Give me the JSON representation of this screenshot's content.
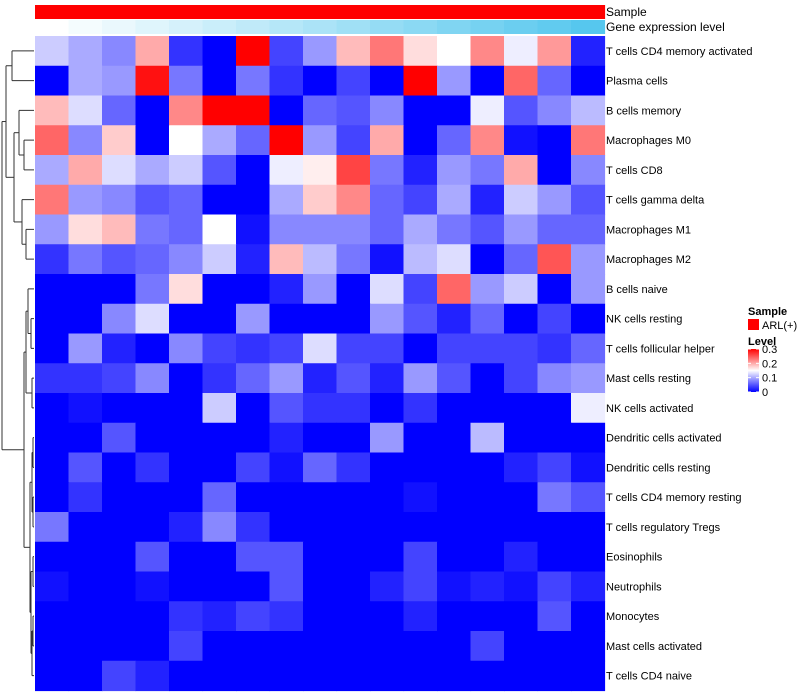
{
  "chart_data": {
    "type": "heatmap",
    "columns": 17,
    "rows": [
      "T cells CD4 memory activated",
      "Plasma cells",
      "B cells memory",
      "Macrophages M0",
      "T cells CD8",
      "T cells gamma delta",
      "Macrophages M1",
      "Macrophages M2",
      "B cells naive",
      "NK cells resting",
      "T cells follicular helper",
      "Mast cells resting",
      "NK cells activated",
      "Dendritic cells activated",
      "Dendritic cells resting",
      "T cells CD4 memory resting",
      "T cells regulatory  Tregs",
      "Eosinophils",
      "Neutrophils",
      "Monocytes",
      "Mast cells activated",
      "T cells CD4 naive"
    ],
    "values": [
      [
        0.12,
        0.1,
        0.08,
        0.2,
        0.03,
        0.0,
        0.3,
        0.04,
        0.09,
        0.19,
        0.23,
        0.17,
        0.15,
        0.22,
        0.14,
        0.21,
        0.02
      ],
      [
        0.0,
        0.1,
        0.09,
        0.29,
        0.07,
        0.0,
        0.07,
        0.03,
        0.0,
        0.04,
        0.0,
        0.3,
        0.09,
        0.0,
        0.24,
        0.06,
        0.0
      ],
      [
        0.19,
        0.13,
        0.06,
        0.0,
        0.22,
        0.3,
        0.3,
        0.0,
        0.06,
        0.05,
        0.08,
        0.0,
        0.0,
        0.14,
        0.05,
        0.08,
        0.11
      ],
      [
        0.24,
        0.08,
        0.18,
        0.0,
        0.15,
        0.1,
        0.06,
        0.3,
        0.09,
        0.04,
        0.2,
        0.0,
        0.06,
        0.22,
        0.01,
        0.0,
        0.23
      ],
      [
        0.1,
        0.2,
        0.13,
        0.1,
        0.12,
        0.05,
        0.0,
        0.14,
        0.16,
        0.26,
        0.07,
        0.02,
        0.09,
        0.07,
        0.2,
        0.0,
        0.08
      ],
      [
        0.23,
        0.09,
        0.08,
        0.05,
        0.06,
        0.0,
        0.0,
        0.1,
        0.18,
        0.22,
        0.06,
        0.04,
        0.1,
        0.02,
        0.12,
        0.09,
        0.05
      ],
      [
        0.09,
        0.17,
        0.19,
        0.07,
        0.06,
        0.15,
        0.01,
        0.08,
        0.08,
        0.08,
        0.06,
        0.1,
        0.07,
        0.05,
        0.09,
        0.06,
        0.06
      ],
      [
        0.03,
        0.07,
        0.05,
        0.06,
        0.08,
        0.12,
        0.02,
        0.19,
        0.11,
        0.07,
        0.01,
        0.11,
        0.13,
        0.0,
        0.06,
        0.25,
        0.09
      ],
      [
        0.0,
        0.0,
        0.0,
        0.07,
        0.17,
        0.0,
        0.0,
        0.02,
        0.09,
        0.0,
        0.13,
        0.04,
        0.24,
        0.09,
        0.12,
        0.0,
        0.09
      ],
      [
        0.0,
        0.0,
        0.08,
        0.13,
        0.0,
        0.0,
        0.09,
        0.0,
        0.0,
        0.0,
        0.09,
        0.05,
        0.02,
        0.06,
        0.0,
        0.04,
        0.0
      ],
      [
        0.0,
        0.09,
        0.02,
        0.0,
        0.08,
        0.04,
        0.03,
        0.04,
        0.13,
        0.04,
        0.04,
        0.0,
        0.04,
        0.04,
        0.04,
        0.03,
        0.06
      ],
      [
        0.03,
        0.03,
        0.04,
        0.08,
        0.0,
        0.03,
        0.06,
        0.09,
        0.02,
        0.05,
        0.02,
        0.09,
        0.05,
        0.0,
        0.04,
        0.08,
        0.09
      ],
      [
        0.0,
        0.01,
        0.0,
        0.0,
        0.0,
        0.12,
        0.0,
        0.05,
        0.03,
        0.03,
        0.0,
        0.03,
        0.0,
        0.0,
        0.0,
        0.0,
        0.14
      ],
      [
        0.0,
        0.0,
        0.05,
        0.0,
        0.0,
        0.0,
        0.0,
        0.02,
        0.0,
        0.0,
        0.09,
        0.0,
        0.0,
        0.11,
        0.0,
        0.0,
        0.0
      ],
      [
        0.0,
        0.05,
        0.0,
        0.03,
        0.0,
        0.0,
        0.04,
        0.01,
        0.06,
        0.03,
        0.0,
        0.0,
        0.0,
        0.0,
        0.02,
        0.04,
        0.01
      ],
      [
        0.0,
        0.03,
        0.0,
        0.0,
        0.0,
        0.06,
        0.0,
        0.0,
        0.0,
        0.0,
        0.0,
        0.01,
        0.0,
        0.0,
        0.0,
        0.07,
        0.05
      ],
      [
        0.07,
        0.0,
        0.0,
        0.0,
        0.02,
        0.08,
        0.03,
        0.0,
        0.0,
        0.0,
        0.0,
        0.0,
        0.0,
        0.0,
        0.0,
        0.0,
        0.0
      ],
      [
        0.0,
        0.0,
        0.0,
        0.05,
        0.0,
        0.0,
        0.05,
        0.05,
        0.0,
        0.0,
        0.0,
        0.04,
        0.0,
        0.0,
        0.02,
        0.0,
        0.0
      ],
      [
        0.01,
        0.0,
        0.0,
        0.01,
        0.0,
        0.0,
        0.0,
        0.05,
        0.0,
        0.0,
        0.02,
        0.04,
        0.01,
        0.02,
        0.01,
        0.04,
        0.02
      ],
      [
        0.0,
        0.0,
        0.0,
        0.0,
        0.03,
        0.02,
        0.04,
        0.03,
        0.0,
        0.0,
        0.0,
        0.02,
        0.0,
        0.0,
        0.0,
        0.05,
        0.0
      ],
      [
        0.0,
        0.0,
        0.0,
        0.0,
        0.04,
        0.0,
        0.0,
        0.0,
        0.0,
        0.0,
        0.0,
        0.0,
        0.0,
        0.04,
        0.0,
        0.0,
        0.0
      ],
      [
        0.0,
        0.0,
        0.04,
        0.02,
        0.0,
        0.0,
        0.0,
        0.0,
        0.0,
        0.0,
        0.0,
        0.0,
        0.0,
        0.0,
        0.0,
        0.0,
        0.0
      ]
    ],
    "annotations": {
      "sample_label": "Sample",
      "sample_color": "#ff0000",
      "gene_label": "Gene expression level",
      "gene_expression": [
        0.0,
        0.04,
        0.08,
        0.12,
        0.16,
        0.2,
        0.24,
        0.28,
        0.32,
        0.36,
        0.4,
        0.44,
        0.48,
        0.52,
        0.56,
        0.6,
        0.64
      ]
    },
    "gene_color_low": "#ffffff",
    "gene_color_high": "#56c7ee",
    "legend": {
      "sample_title": "Sample",
      "sample_entry": "ARL(+)",
      "level_title": "Level",
      "ticks": [
        {
          "value": 0.3,
          "label": "0.3"
        },
        {
          "value": 0.2,
          "label": "0.2"
        },
        {
          "value": 0.1,
          "label": "0.1"
        },
        {
          "value": 0.0,
          "label": "0"
        }
      ]
    },
    "color_scale": {
      "min": 0,
      "mid": 0.15,
      "max": 0.3,
      "low": "#0000ff",
      "midColor": "#ffffff",
      "high": "#ff0000"
    }
  }
}
